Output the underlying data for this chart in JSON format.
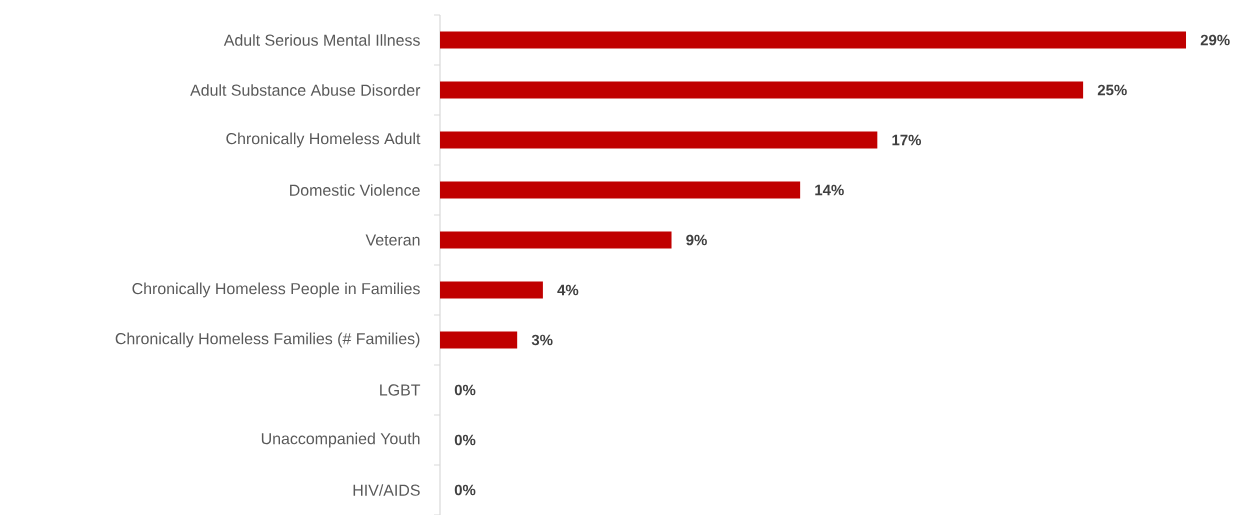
{
  "chart_data": {
    "type": "bar",
    "orientation": "horizontal",
    "categories": [
      "Adult Serious Mental Illness",
      "Adult Substance Abuse Disorder",
      "Chronically Homeless Adult",
      "Domestic Violence",
      "Veteran",
      "Chronically Homeless People in Families",
      "Chronically Homeless Families (# Families)",
      "LGBT",
      "Unaccompanied Youth",
      "HIV/AIDS"
    ],
    "values": [
      29,
      25,
      17,
      14,
      9,
      4,
      3,
      0,
      0,
      0
    ],
    "value_labels": [
      "29%",
      "25%",
      "17%",
      "14%",
      "9%",
      "4%",
      "3%",
      "0%",
      "0%",
      "0%"
    ],
    "color": "#c00000"
  }
}
